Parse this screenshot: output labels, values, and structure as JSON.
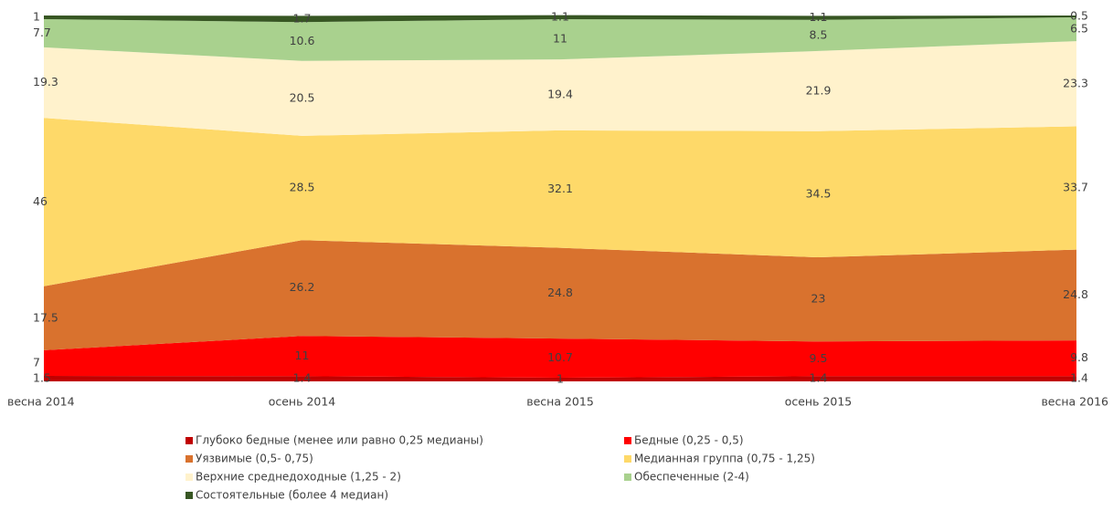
{
  "chart_data": {
    "type": "stacked_area",
    "categories": [
      "весна 2014",
      "осень 2014",
      "весна 2015",
      "осень 2015",
      "весна 2016"
    ],
    "ylim": [
      0,
      100
    ],
    "series": [
      {
        "name": "Глубоко бедные (менее или равно 0,25 медианы)",
        "color": "#c00000",
        "values": [
          1.5,
          1.4,
          1,
          1.4,
          1.4
        ]
      },
      {
        "name": "Бедные (0,25 - 0,5)",
        "color": "#ff0000",
        "values": [
          7,
          11,
          10.7,
          9.5,
          9.8
        ]
      },
      {
        "name": "Уязвимые (0,5- 0,75)",
        "color": "#d9722e",
        "values": [
          17.5,
          26.2,
          24.8,
          23,
          24.8
        ]
      },
      {
        "name": "Медианная группа (0,75 - 1,25)",
        "color": "#fed969",
        "values": [
          46,
          28.5,
          32.1,
          34.5,
          33.7
        ]
      },
      {
        "name": "Верхние среднедоходные  (1,25 - 2)",
        "color": "#fff2cc",
        "values": [
          19.3,
          20.5,
          19.4,
          21.9,
          23.3
        ]
      },
      {
        "name": "Обеспеченные (2-4)",
        "color": "#a9d18e",
        "values": [
          7.7,
          10.6,
          11,
          8.5,
          6.5
        ]
      },
      {
        "name": "Состоятельные (более 4 медиан)",
        "color": "#375623",
        "values": [
          1,
          1.7,
          1.1,
          1.1,
          0.5
        ]
      }
    ]
  }
}
